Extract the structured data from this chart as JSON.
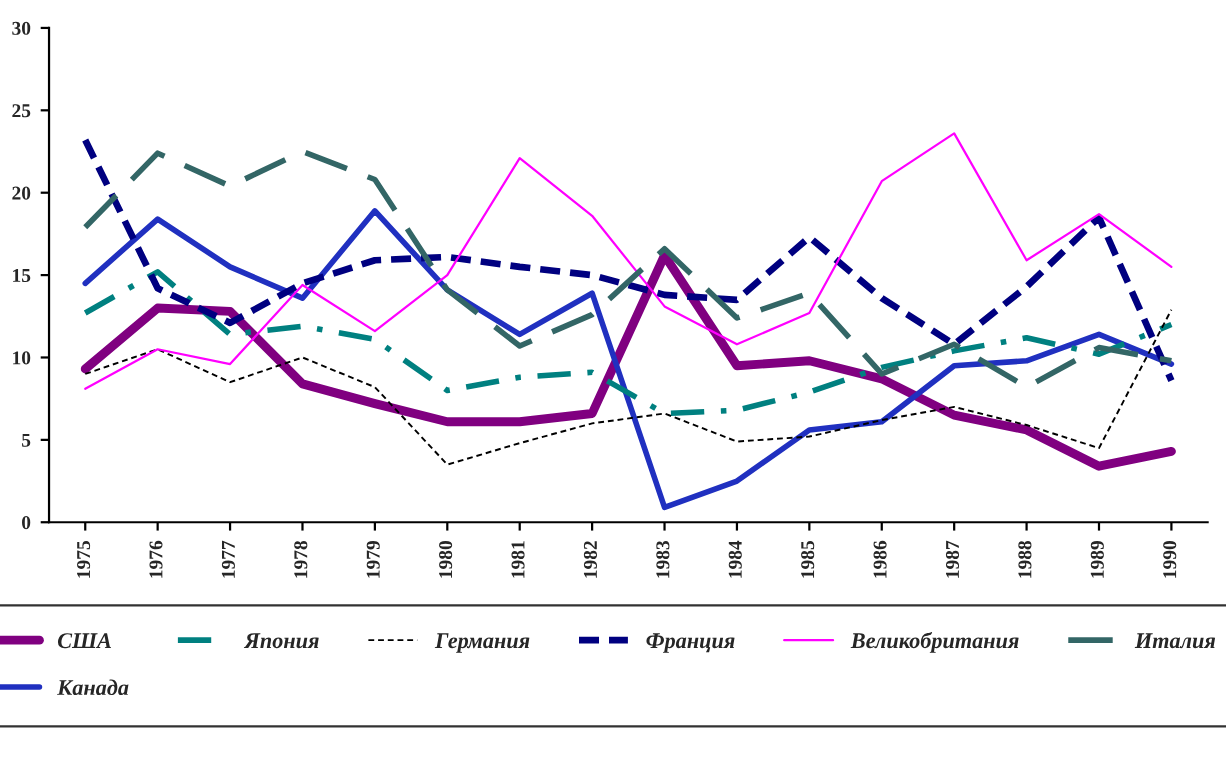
{
  "chart_data": {
    "type": "line",
    "categories": [
      "1975",
      "1976",
      "1977",
      "1978",
      "1979",
      "1980",
      "1981",
      "1982",
      "1983",
      "1984",
      "1985",
      "1986",
      "1987",
      "1988",
      "1989",
      "1990"
    ],
    "ylim": [
      0,
      30
    ],
    "yticks": [
      0,
      5,
      10,
      15,
      20,
      25,
      30
    ],
    "grid": false,
    "legend": "bottom",
    "marker": "none",
    "series": [
      {
        "name": "США",
        "color": "#800080",
        "line_style": "solid",
        "values": [
          9.3,
          13,
          12.8,
          8.4,
          7.2,
          6.1,
          6.1,
          6.6,
          16.2,
          9.5,
          9.8,
          8.7,
          6.5,
          5.6,
          3.4,
          4.3
        ]
      },
      {
        "name": "Канада",
        "color": "#2030c0",
        "line_style": "solid",
        "values": [
          14.5,
          18.4,
          15.5,
          13.6,
          18.9,
          14.1,
          11.4,
          13.9,
          0.9,
          2.5,
          5.6,
          6.1,
          9.5,
          9.8,
          11.4,
          9.6
        ]
      },
      {
        "name": "Япония",
        "color": "#008080",
        "line_style": "dashdot",
        "values": [
          12.7,
          15.2,
          11.4,
          11.9,
          11.1,
          8.0,
          8.8,
          9.1,
          6.6,
          6.8,
          7.9,
          9.4,
          10.4,
          11.2,
          10.2,
          12.0
        ]
      },
      {
        "name": "Германия",
        "color": "#000000",
        "line_style": "dashed",
        "values": [
          9.0,
          10.5,
          8.5,
          10.0,
          8.2,
          3.5,
          4.8,
          6.0,
          6.6,
          4.9,
          5.2,
          6.2,
          7.0,
          5.9,
          4.5,
          12.9
        ]
      },
      {
        "name": "Франция",
        "color": "#000080",
        "line_style": "dashed",
        "values": [
          23.2,
          14.2,
          12.1,
          14.5,
          15.9,
          16.1,
          15.5,
          15.0,
          13.8,
          13.5,
          17.3,
          13.6,
          10.8,
          14.3,
          18.5,
          8.6
        ]
      },
      {
        "name": "Великобритания",
        "color": "#ff00ff",
        "line_style": "solid",
        "values": [
          8.1,
          10.5,
          9.6,
          14.4,
          11.6,
          15.0,
          22.1,
          18.6,
          13.1,
          10.8,
          12.7,
          20.7,
          23.6,
          15.9,
          18.7,
          15.5
        ]
      },
      {
        "name": "Италия",
        "color": "#336666",
        "line_style": "dashed",
        "values": [
          17.9,
          22.4,
          20.4,
          22.5,
          20.8,
          14.1,
          10.7,
          12.6,
          16.6,
          12.4,
          13.9,
          9.0,
          10.8,
          8.2,
          10.6,
          9.8
        ]
      }
    ]
  }
}
